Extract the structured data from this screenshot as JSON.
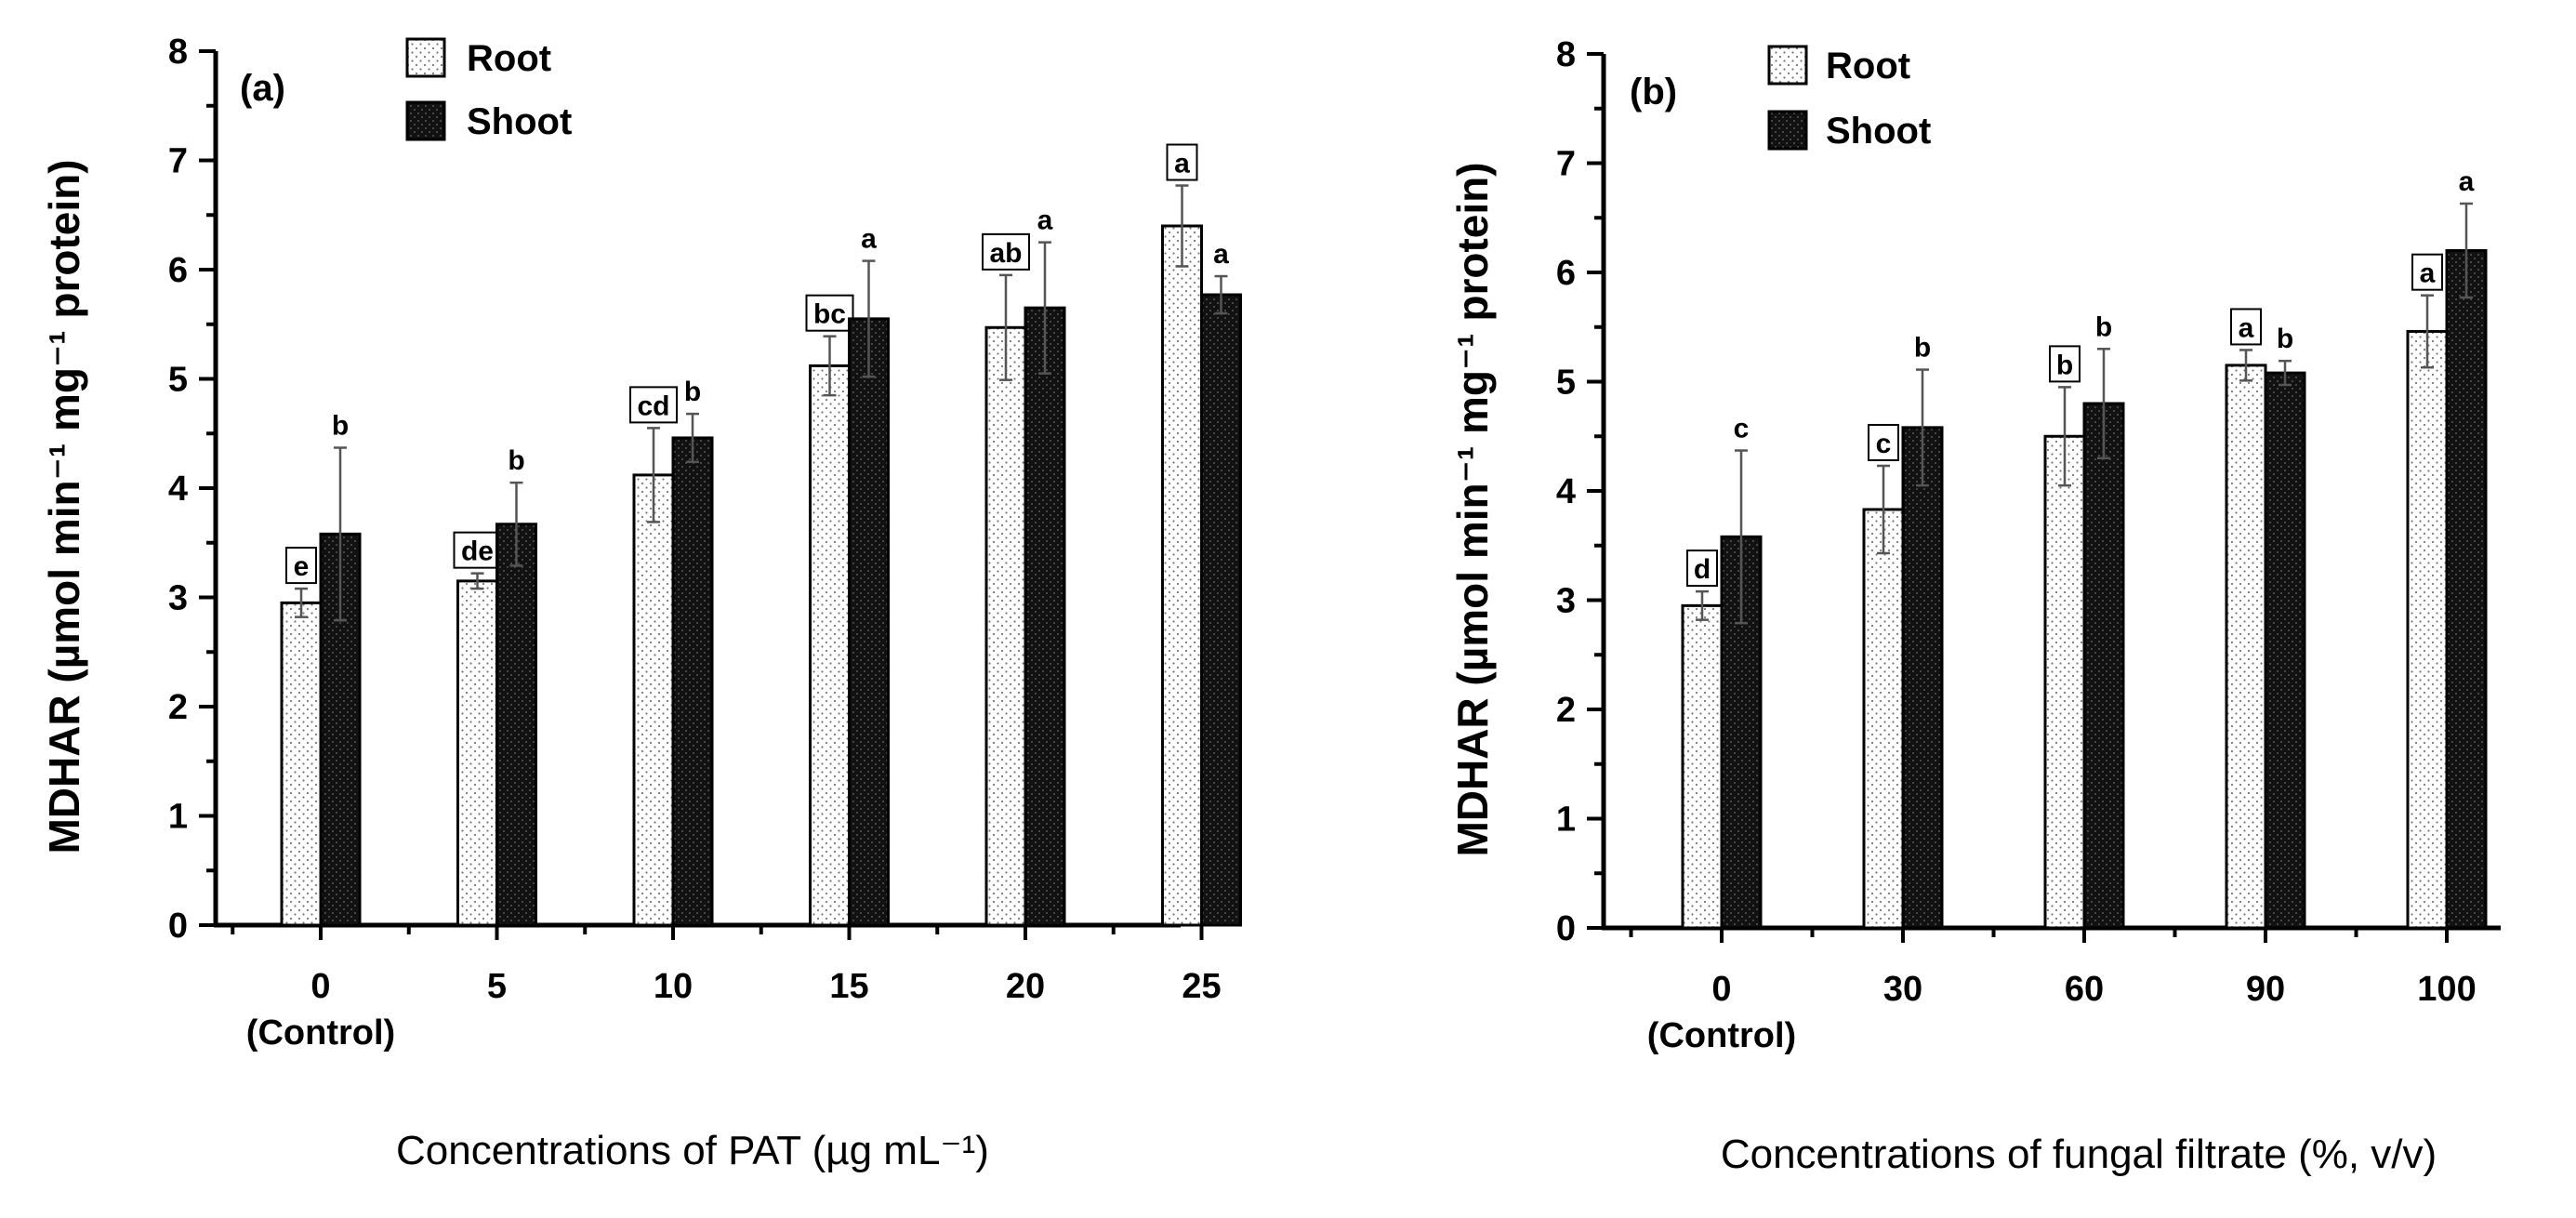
{
  "chart_data": [
    {
      "type": "bar",
      "panel_label": "(a)",
      "categories": [
        "0",
        "5",
        "10",
        "15",
        "20",
        "25"
      ],
      "category_sublabels": [
        "(Control)",
        "",
        "",
        "",
        "",
        ""
      ],
      "ylabel": "MDHAR (µmol min⁻¹ mg⁻¹ protein)",
      "xlabel": "Concentrations of PAT (µg mL⁻¹)",
      "ylim": [
        0,
        8
      ],
      "yticks": [
        "0",
        "1",
        "2",
        "3",
        "4",
        "5",
        "6",
        "7",
        "8"
      ],
      "legend_position": "top-left",
      "series": [
        {
          "name": "Root",
          "pattern": "dotted",
          "values": [
            2.95,
            3.15,
            4.12,
            5.12,
            5.47,
            6.4
          ],
          "errors": [
            0.13,
            0.07,
            0.43,
            0.27,
            0.48,
            0.37
          ],
          "letters": [
            "e",
            "de",
            "cd",
            "bc",
            "ab",
            "a"
          ],
          "letters_boxed": true
        },
        {
          "name": "Shoot",
          "pattern": "dark",
          "values": [
            3.58,
            3.67,
            4.46,
            5.55,
            5.65,
            5.77
          ],
          "errors": [
            0.79,
            0.38,
            0.22,
            0.53,
            0.6,
            0.17
          ],
          "letters": [
            "b",
            "b",
            "b",
            "a",
            "a",
            "a"
          ],
          "letters_boxed": false
        }
      ]
    },
    {
      "type": "bar",
      "panel_label": "(b)",
      "categories": [
        "0",
        "30",
        "60",
        "90",
        "100"
      ],
      "category_sublabels": [
        "(Control)",
        "",
        "",
        "",
        ""
      ],
      "ylabel": "MDHAR (µmol min⁻¹ mg⁻¹ protein)",
      "xlabel": "Concentrations of fungal filtrate (%, v/v)",
      "ylim": [
        0,
        8
      ],
      "yticks": [
        "0",
        "1",
        "2",
        "3",
        "4",
        "5",
        "6",
        "7",
        "8"
      ],
      "legend_position": "top-left",
      "series": [
        {
          "name": "Root",
          "pattern": "dotted",
          "values": [
            2.95,
            3.83,
            4.5,
            5.15,
            5.46
          ],
          "errors": [
            0.13,
            0.4,
            0.45,
            0.14,
            0.33
          ],
          "letters": [
            "d",
            "c",
            "b",
            "a",
            "a"
          ],
          "letters_boxed": true
        },
        {
          "name": "Shoot",
          "pattern": "dark",
          "values": [
            3.58,
            4.58,
            4.8,
            5.08,
            6.2
          ],
          "errors": [
            0.79,
            0.53,
            0.5,
            0.11,
            0.43
          ],
          "letters": [
            "c",
            "b",
            "b",
            "b",
            "a"
          ],
          "letters_boxed": false
        }
      ]
    }
  ],
  "colors": {
    "root_fill": "#ffffff",
    "root_dots": "#777777",
    "shoot_fill": "#111111",
    "shoot_dots": "#555555",
    "axis": "#000000"
  }
}
